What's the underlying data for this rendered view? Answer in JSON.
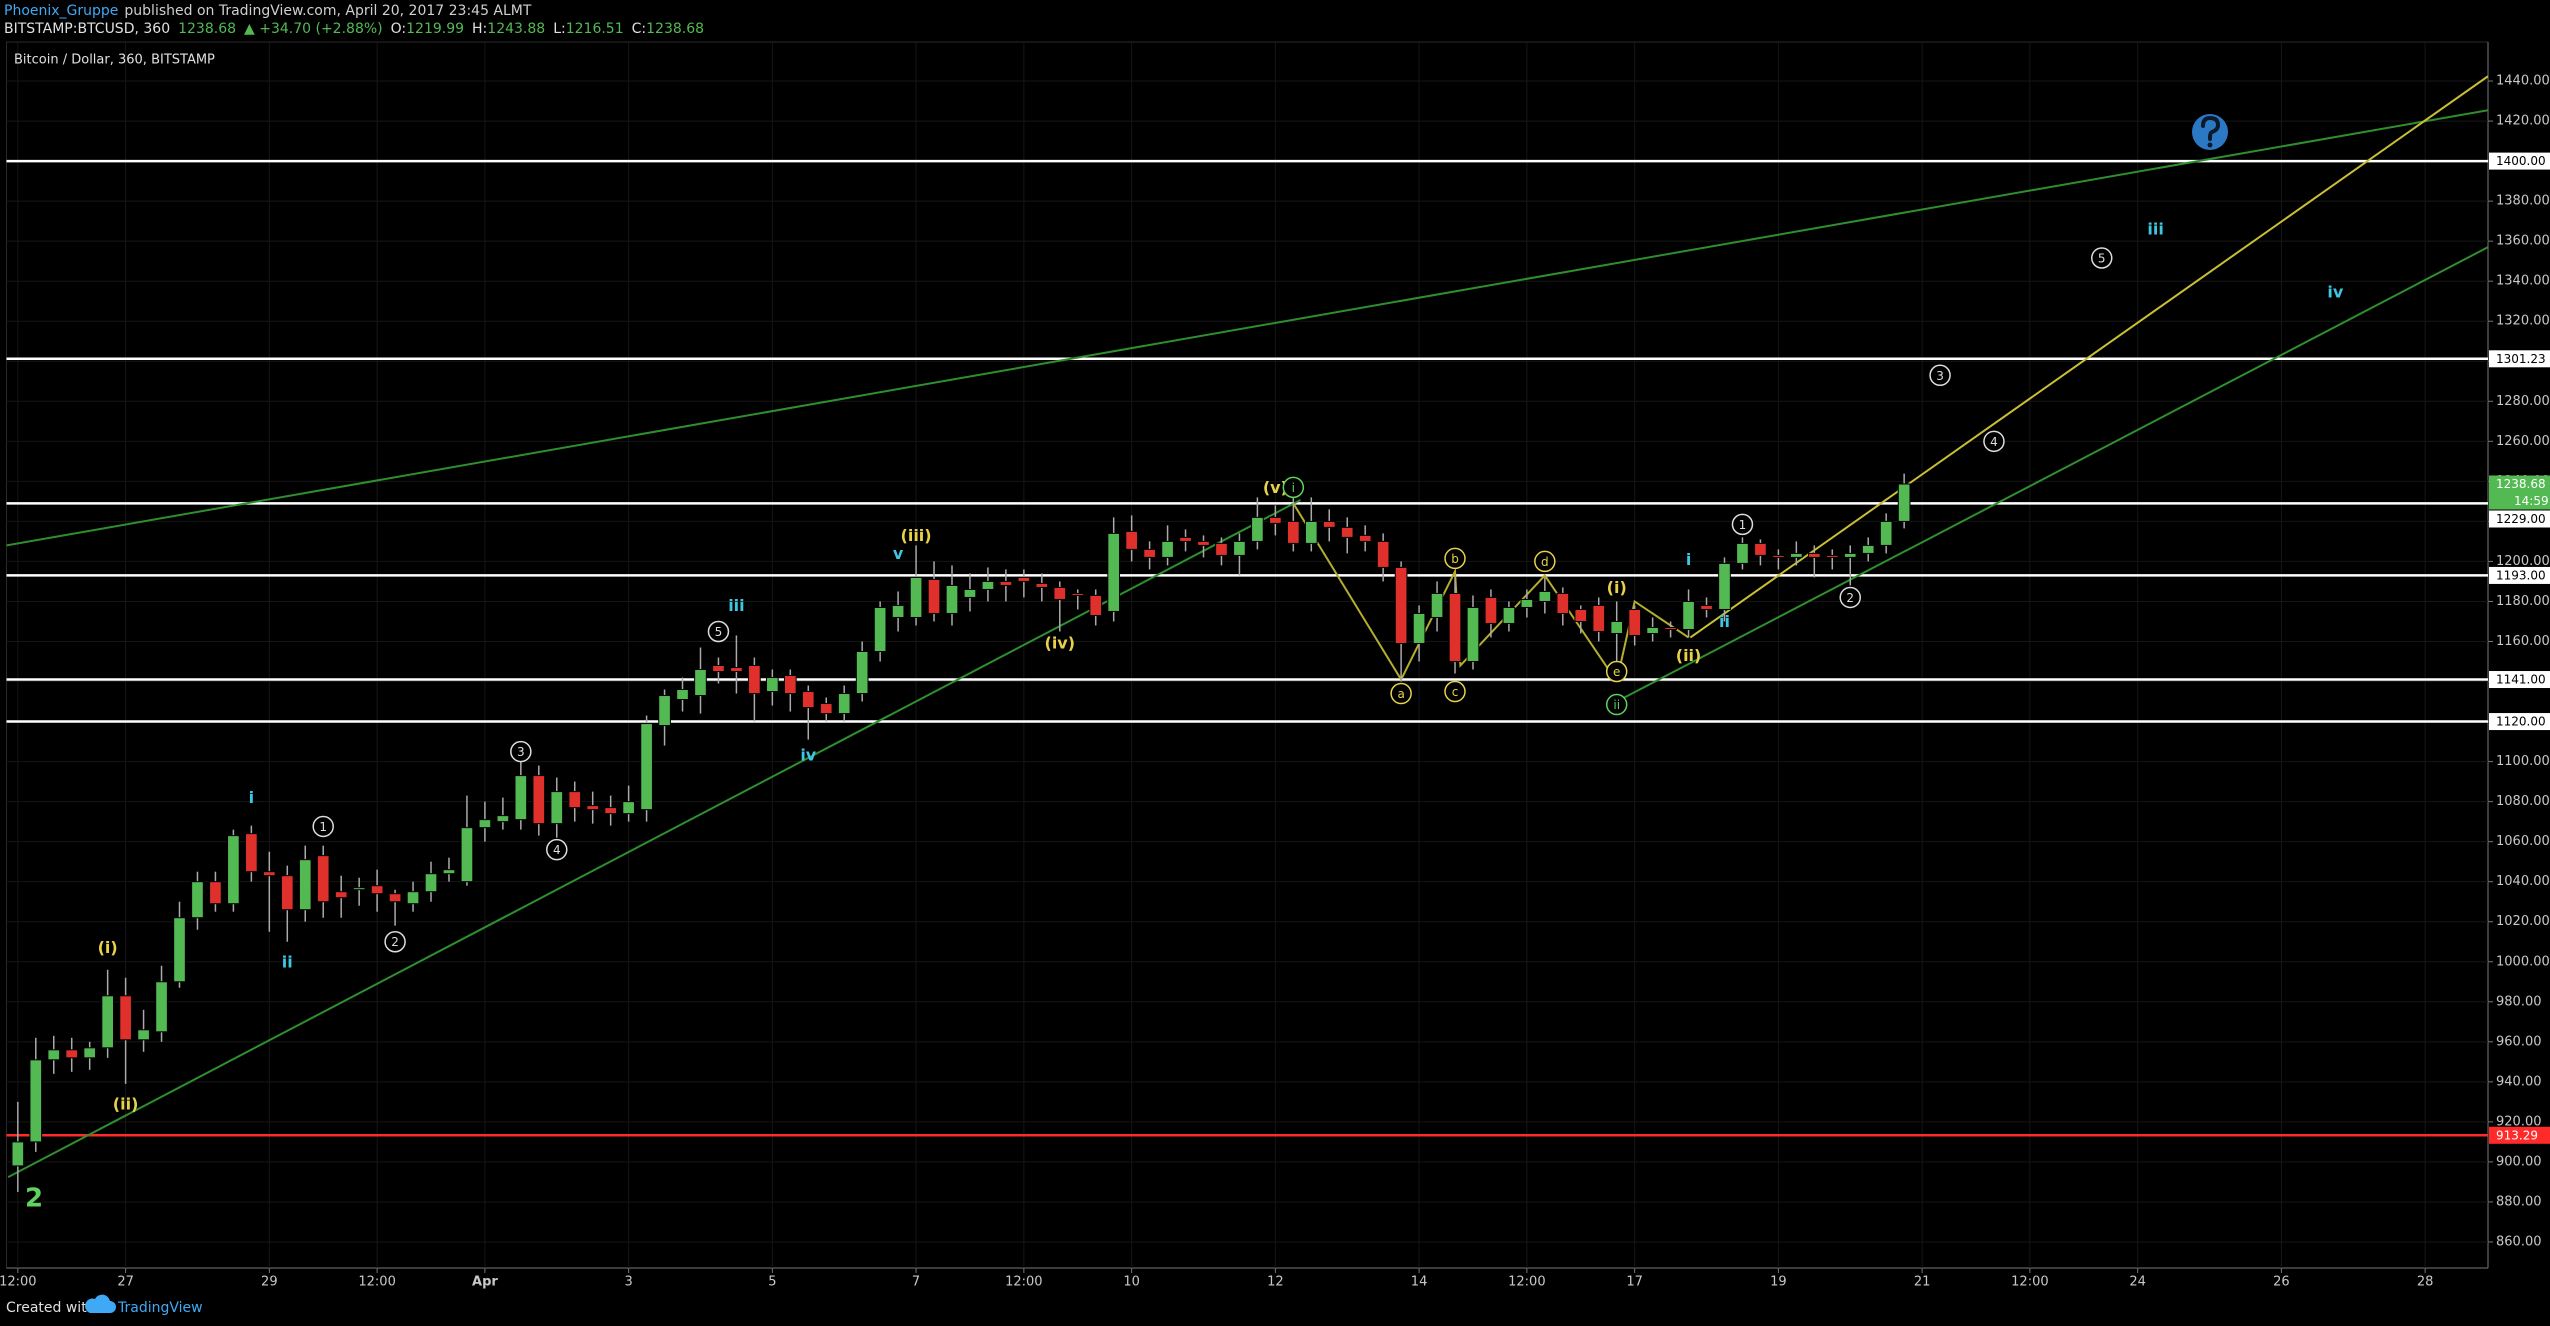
{
  "header": {
    "publisher": "Phoenix_Gruppe",
    "published": "published on TradingView.com, April 20, 2017 23:45 ALMT",
    "symbol": "BITSTAMP:BTCUSD, 360",
    "last": "1238.68",
    "change": "▲ +34.70 (+2.88%)",
    "ohlc": [
      {
        "label": "O:",
        "value": "1219.99"
      },
      {
        "label": "H:",
        "value": "1243.88"
      },
      {
        "label": "L:",
        "value": "1216.51"
      },
      {
        "label": "C:",
        "value": "1238.68"
      }
    ]
  },
  "footer": {
    "created": "Created with",
    "brand": "TradingView"
  },
  "chart_data": {
    "type": "candlestick",
    "title": "Bitcoin / Dollar, 360, BITSTAMP",
    "xlim": [
      -0.63,
      137.5
    ],
    "ylim": [
      847,
      1459.5
    ],
    "grid": true,
    "up_color": "#53b953",
    "down_color": "#e0302c",
    "xticks": [
      {
        "value": 0,
        "label": "12:00"
      },
      {
        "value": 6,
        "label": "27"
      },
      {
        "value": 14,
        "label": "29"
      },
      {
        "value": 20,
        "label": "12:00"
      },
      {
        "value": 26,
        "label": "Apr"
      },
      {
        "value": 34,
        "label": "3"
      },
      {
        "value": 42,
        "label": "5"
      },
      {
        "value": 50,
        "label": "7"
      },
      {
        "value": 56,
        "label": "12:00"
      },
      {
        "value": 62,
        "label": "10"
      },
      {
        "value": 70,
        "label": "12"
      },
      {
        "value": 78,
        "label": "14"
      },
      {
        "value": 84,
        "label": "12:00"
      },
      {
        "value": 90,
        "label": "17"
      },
      {
        "value": 98,
        "label": "19"
      },
      {
        "value": 106,
        "label": "21"
      },
      {
        "value": 112,
        "label": "12:00"
      },
      {
        "value": 118,
        "label": "24"
      },
      {
        "value": 126,
        "label": "26"
      },
      {
        "value": 134,
        "label": "28"
      }
    ],
    "yticks": [
      {
        "value": 860,
        "label": "860.00"
      },
      {
        "value": 880,
        "label": "880.00"
      },
      {
        "value": 900,
        "label": "900.00"
      },
      {
        "value": 920,
        "label": "920.00"
      },
      {
        "value": 940,
        "label": "940.00"
      },
      {
        "value": 960,
        "label": "960.00"
      },
      {
        "value": 980,
        "label": "980.00"
      },
      {
        "value": 1000,
        "label": "1000.00"
      },
      {
        "value": 1020,
        "label": "1020.00"
      },
      {
        "value": 1040,
        "label": "1040.00"
      },
      {
        "value": 1060,
        "label": "1060.00"
      },
      {
        "value": 1080,
        "label": "1080.00"
      },
      {
        "value": 1100,
        "label": "1100.00"
      },
      {
        "value": 1120,
        "label": "1120.00"
      },
      {
        "value": 1140,
        "label": "1140.00"
      },
      {
        "value": 1160,
        "label": "1160.00"
      },
      {
        "value": 1180,
        "label": "1180.00"
      },
      {
        "value": 1200,
        "label": "1200.00"
      },
      {
        "value": 1220,
        "label": "1220.00"
      },
      {
        "value": 1240,
        "label": "1240.00"
      },
      {
        "value": 1260,
        "label": "1260.00"
      },
      {
        "value": 1280,
        "label": "1280.00"
      },
      {
        "value": 1300,
        "label": "1300.00"
      },
      {
        "value": 1320,
        "label": "1320.00"
      },
      {
        "value": 1340,
        "label": "1340.00"
      },
      {
        "value": 1360,
        "label": "1360.00"
      },
      {
        "value": 1380,
        "label": "1380.00"
      },
      {
        "value": 1400,
        "label": "1400.00"
      },
      {
        "value": 1420,
        "label": "1420.00"
      },
      {
        "value": 1440,
        "label": "1440.00"
      }
    ],
    "open": [
      898,
      910,
      951,
      956,
      952,
      957,
      983,
      961,
      965,
      990,
      1022,
      1040,
      1029,
      1064,
      1045,
      1043,
      1026,
      1053,
      1035,
      1036,
      1038,
      1034,
      1029,
      1035,
      1044,
      1040,
      1067,
      1070,
      1071,
      1093,
      1069,
      1085,
      1078,
      1077,
      1074,
      1076,
      1118,
      1131,
      1133,
      1148,
      1147,
      1148,
      1135,
      1143,
      1135,
      1129,
      1124,
      1134,
      1155,
      1172,
      1172,
      1191,
      1174,
      1182,
      1186,
      1190,
      1192,
      1189,
      1187,
      1184,
      1183,
      1175,
      1215,
      1206,
      1202,
      1212,
      1210,
      1209,
      1203,
      1210,
      1222,
      1220,
      1209,
      1220,
      1217,
      1213,
      1210,
      1197,
      1159,
      1172,
      1184,
      1150,
      1182,
      1169,
      1177,
      1180,
      1184,
      1176,
      1178,
      1164,
      1176,
      1164,
      1167,
      1166,
      1178,
      1176,
      1199,
      1209,
      1203,
      1202,
      1204,
      1203,
      1202,
      1204,
      1208,
      1219.99
    ],
    "high": [
      930,
      962,
      963,
      962,
      960,
      996,
      992,
      976,
      998,
      1030,
      1045,
      1045,
      1066,
      1068,
      1055,
      1048,
      1058,
      1058,
      1043,
      1042,
      1046,
      1036,
      1040,
      1050,
      1052,
      1083,
      1080,
      1082,
      1100,
      1098,
      1092,
      1090,
      1085,
      1083,
      1088,
      1123,
      1136,
      1142,
      1157,
      1152,
      1163,
      1152,
      1146,
      1146,
      1138,
      1132,
      1138,
      1160,
      1180,
      1185,
      1208,
      1200,
      1198,
      1194,
      1197,
      1196,
      1196,
      1194,
      1190,
      1186,
      1186,
      1222,
      1223,
      1210,
      1218,
      1216,
      1213,
      1212,
      1214,
      1232,
      1228,
      1235,
      1232,
      1226,
      1222,
      1218,
      1214,
      1200,
      1178,
      1190,
      1192,
      1183,
      1186,
      1180,
      1186,
      1192,
      1187,
      1178,
      1182,
      1180,
      1178,
      1172,
      1170,
      1186,
      1182,
      1202,
      1212,
      1211,
      1206,
      1210,
      1208,
      1206,
      1208,
      1212,
      1224,
      1243.88
    ],
    "low": [
      885,
      905,
      944,
      945,
      946,
      952,
      939,
      955,
      960,
      987,
      1016,
      1025,
      1025,
      1040,
      1015,
      1010,
      1020,
      1022,
      1022,
      1028,
      1025,
      1018,
      1025,
      1030,
      1040,
      1038,
      1060,
      1066,
      1066,
      1063,
      1062,
      1070,
      1069,
      1068,
      1070,
      1070,
      1108,
      1125,
      1124,
      1139,
      1134,
      1120,
      1128,
      1125,
      1111,
      1120,
      1120,
      1130,
      1150,
      1165,
      1168,
      1170,
      1168,
      1175,
      1180,
      1180,
      1182,
      1180,
      1165,
      1176,
      1168,
      1170,
      1200,
      1196,
      1198,
      1205,
      1202,
      1198,
      1193,
      1206,
      1213,
      1205,
      1205,
      1210,
      1204,
      1205,
      1190,
      1140,
      1150,
      1165,
      1144,
      1146,
      1162,
      1165,
      1172,
      1174,
      1168,
      1164,
      1160,
      1148,
      1158,
      1160,
      1162,
      1162,
      1172,
      1170,
      1196,
      1198,
      1196,
      1198,
      1192,
      1196,
      1188,
      1200,
      1204,
      1216.51
    ],
    "close": [
      910,
      951,
      956,
      952,
      957,
      983,
      961,
      966,
      990,
      1022,
      1040,
      1029,
      1063,
      1045,
      1043,
      1026,
      1051,
      1030,
      1032,
      1037,
      1034,
      1030,
      1035,
      1044,
      1046,
      1067,
      1071,
      1073,
      1093,
      1069,
      1085,
      1077,
      1076,
      1074,
      1080,
      1119,
      1133,
      1136,
      1146,
      1145,
      1145,
      1134,
      1142,
      1134,
      1127,
      1124,
      1134,
      1155,
      1177,
      1178,
      1192,
      1174,
      1188,
      1186,
      1190,
      1188,
      1190,
      1187,
      1181,
      1183,
      1173,
      1214,
      1206,
      1202,
      1210,
      1210,
      1208,
      1203,
      1210,
      1222,
      1219,
      1209,
      1220,
      1217,
      1212,
      1210,
      1197,
      1159,
      1174,
      1184,
      1150,
      1177,
      1169,
      1177,
      1181,
      1185,
      1174,
      1170,
      1165,
      1170,
      1163,
      1167,
      1166,
      1180,
      1176,
      1199,
      1209,
      1203,
      1202,
      1204,
      1202,
      1202,
      1204,
      1208,
      1220,
      1238.68
    ],
    "price_lines": [
      {
        "value": 1400,
        "label": "1400.00",
        "color": "#ffffff"
      },
      {
        "value": 1301.23,
        "label": "1301.23",
        "color": "#ffffff"
      },
      {
        "value": 1229,
        "label": "1229.00",
        "color": "#ffffff"
      },
      {
        "value": 1193,
        "label": "1193.00",
        "color": "#ffffff"
      },
      {
        "value": 1141,
        "label": "1141.00",
        "color": "#ffffff"
      },
      {
        "value": 1120,
        "label": "1120.00",
        "color": "#ffffff"
      },
      {
        "value": 913.29,
        "label": "913.29",
        "color": "#ff2a2a"
      }
    ],
    "last_price": {
      "value": 1238.68,
      "label": "1238.68",
      "countdown": "14:59",
      "color": "#53b953"
    },
    "trendlines": [
      {
        "color": "#2f8f2f",
        "x": [
          -0.63,
          137.5
        ],
        "y": [
          1208,
          1425.4
        ]
      },
      {
        "color": "#2f8f2f",
        "x": [
          -0.54,
          71.4
        ],
        "y": [
          892.4,
          1230.7
        ]
      },
      {
        "color": "#2f8f2f",
        "x": [
          89,
          137.5
        ],
        "y": [
          1130,
          1357
        ]
      },
      {
        "color": "#c9bf35",
        "x": [
          93.1,
          137.5
        ],
        "y": [
          1162,
          1442.4
        ]
      },
      {
        "color": "#b5ad2c",
        "x": [
          71,
          77,
          80,
          80.3,
          85,
          89
        ],
        "y": [
          1229,
          1141,
          1195,
          1148,
          1193,
          1140
        ]
      },
      {
        "color": "#b5ad2c",
        "x": [
          89,
          90,
          93
        ],
        "y": [
          1140,
          1180,
          1162
        ]
      }
    ],
    "annotations": [
      {
        "text": "2",
        "x": 0.9,
        "y": 882,
        "color": "#5fd35f",
        "circle": false,
        "large": true
      },
      {
        "text": "(i)",
        "x": 5,
        "y": 1007,
        "color": "#e8d24a",
        "circle": false
      },
      {
        "text": "(ii)",
        "x": 6,
        "y": 929,
        "color": "#e8d24a",
        "circle": false
      },
      {
        "text": "i",
        "x": 13,
        "y": 1082,
        "color": "#3fc6e0",
        "circle": false
      },
      {
        "text": "ii",
        "x": 15,
        "y": 1000,
        "color": "#3fc6e0",
        "circle": false
      },
      {
        "text": "1",
        "x": 17,
        "y": 1067.6,
        "color": "#dddddd",
        "circle": true
      },
      {
        "text": "2",
        "x": 21,
        "y": 1010,
        "color": "#dddddd",
        "circle": true
      },
      {
        "text": "3",
        "x": 28,
        "y": 1105,
        "color": "#dddddd",
        "circle": true
      },
      {
        "text": "4",
        "x": 30,
        "y": 1056,
        "color": "#dddddd",
        "circle": true
      },
      {
        "text": "5",
        "x": 39,
        "y": 1165,
        "color": "#dddddd",
        "circle": true
      },
      {
        "text": "iii",
        "x": 40,
        "y": 1178,
        "color": "#3fc6e0",
        "circle": false
      },
      {
        "text": "iv",
        "x": 44,
        "y": 1103.3,
        "color": "#3fc6e0",
        "circle": false
      },
      {
        "text": "v",
        "x": 49,
        "y": 1204,
        "color": "#3fc6e0",
        "circle": false
      },
      {
        "text": "(iii)",
        "x": 50,
        "y": 1213,
        "color": "#e8d24a",
        "circle": false
      },
      {
        "text": "(iv)",
        "x": 58,
        "y": 1159.3,
        "color": "#e8d24a",
        "circle": false
      },
      {
        "text": "(v)",
        "x": 70,
        "y": 1237,
        "color": "#e8d24a",
        "circle": false
      },
      {
        "text": "i",
        "x": 71,
        "y": 1237,
        "color": "#5fd35f",
        "circle": true
      },
      {
        "text": "a",
        "x": 77,
        "y": 1134,
        "color": "#e8d24a",
        "circle": true
      },
      {
        "text": "b",
        "x": 80,
        "y": 1201.5,
        "color": "#e8d24a",
        "circle": true
      },
      {
        "text": "c",
        "x": 80,
        "y": 1135,
        "color": "#e8d24a",
        "circle": true
      },
      {
        "text": "d",
        "x": 85,
        "y": 1200,
        "color": "#e8d24a",
        "circle": true
      },
      {
        "text": "e",
        "x": 89,
        "y": 1145,
        "color": "#e8d24a",
        "circle": true
      },
      {
        "text": "(i)",
        "x": 89,
        "y": 1187,
        "color": "#e8d24a",
        "circle": false
      },
      {
        "text": "ii",
        "x": 89,
        "y": 1128.5,
        "color": "#5fd35f",
        "circle": true
      },
      {
        "text": "(ii)",
        "x": 93,
        "y": 1153,
        "color": "#e8d24a",
        "circle": false
      },
      {
        "text": "i",
        "x": 93,
        "y": 1201,
        "color": "#3fc6e0",
        "circle": false
      },
      {
        "text": "ii",
        "x": 95,
        "y": 1170,
        "color": "#3fc6e0",
        "circle": false
      },
      {
        "text": "1",
        "x": 96,
        "y": 1218.5,
        "color": "#dddddd",
        "circle": true
      },
      {
        "text": "2",
        "x": 102,
        "y": 1182,
        "color": "#dddddd",
        "circle": true
      },
      {
        "text": "3",
        "x": 107,
        "y": 1293,
        "color": "#dddddd",
        "circle": true
      },
      {
        "text": "4",
        "x": 110,
        "y": 1260,
        "color": "#dddddd",
        "circle": true
      },
      {
        "text": "5",
        "x": 116,
        "y": 1351.6,
        "color": "#dddddd",
        "circle": true
      },
      {
        "text": "iii",
        "x": 119,
        "y": 1366,
        "color": "#3fc6e0",
        "circle": false
      },
      {
        "text": "iv",
        "x": 129,
        "y": 1334.5,
        "color": "#3fc6e0",
        "circle": false
      }
    ]
  }
}
